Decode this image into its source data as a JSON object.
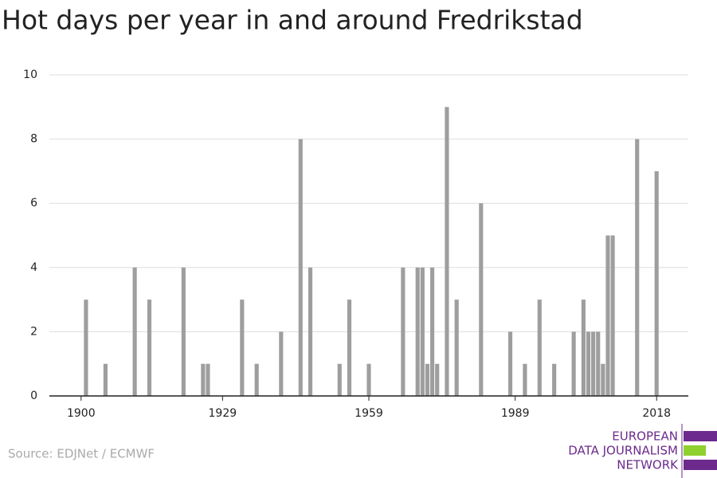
{
  "chart_data": {
    "type": "bar",
    "title": "Hot days per year in and around Fredrikstad",
    "x": [
      1901,
      1905,
      1911,
      1914,
      1921,
      1925,
      1926,
      1933,
      1936,
      1941,
      1945,
      1947,
      1953,
      1955,
      1959,
      1966,
      1969,
      1970,
      1971,
      1972,
      1973,
      1975,
      1977,
      1982,
      1988,
      1991,
      1994,
      1997,
      2001,
      2003,
      2004,
      2005,
      2006,
      2007,
      2008,
      2009,
      2014,
      2018
    ],
    "values": [
      3,
      1,
      4,
      3,
      4,
      1,
      1,
      3,
      1,
      2,
      8,
      4,
      1,
      3,
      1,
      4,
      4,
      4,
      1,
      4,
      1,
      9,
      3,
      6,
      2,
      1,
      3,
      1,
      2,
      3,
      2,
      2,
      2,
      1,
      5,
      5,
      8,
      7
    ],
    "color": "#9e9e9e",
    "xlim": [
      1893.5,
      2024.5
    ],
    "xticks": [
      1900,
      1929,
      1959,
      1989,
      2018
    ],
    "ylim": [
      0,
      10
    ],
    "yticks": [
      0,
      2,
      4,
      6,
      8,
      10
    ],
    "grid": true,
    "source": "Source: EDJNet / ECMWF",
    "logo": [
      "EUROPEAN",
      "DATA JOURNALISM",
      "NETWORK"
    ]
  }
}
